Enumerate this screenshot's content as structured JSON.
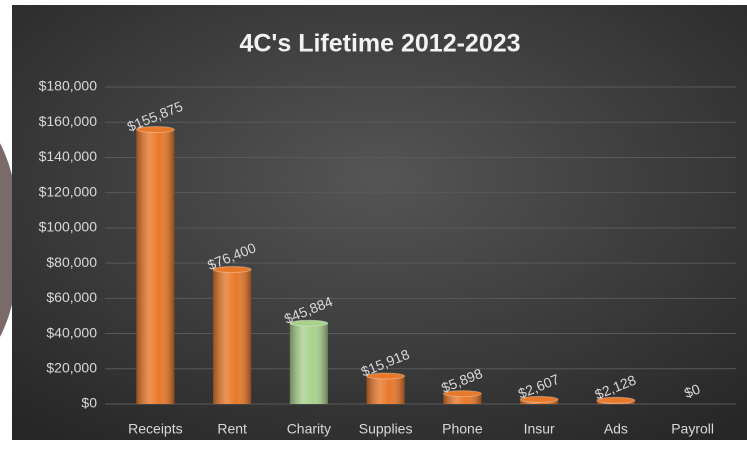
{
  "chart_data": {
    "type": "bar",
    "title": "4C's Lifetime 2012-2023",
    "categories": [
      "Receipts",
      "Rent",
      "Charity",
      "Supplies",
      "Phone",
      "Insur",
      "Ads",
      "Payroll"
    ],
    "values": [
      155875,
      76400,
      45884,
      15918,
      5898,
      2607,
      2128,
      0
    ],
    "value_labels": [
      "$155,875",
      "$76,400",
      "$45,884",
      "$15,918",
      "$5,898",
      "$2,607",
      "$2,128",
      "$0"
    ],
    "colors": [
      "#e8782a",
      "#e8782a",
      "#a9d18e",
      "#e8782a",
      "#e8782a",
      "#e8782a",
      "#e8782a",
      "#e8782a"
    ],
    "ylim": [
      0,
      180000
    ],
    "yticks": [
      {
        "value": 0,
        "label": "$0"
      },
      {
        "value": 20000,
        "label": "$20,000"
      },
      {
        "value": 40000,
        "label": "$40,000"
      },
      {
        "value": 60000,
        "label": "$60,000"
      },
      {
        "value": 80000,
        "label": "$80,000"
      },
      {
        "value": 100000,
        "label": "$100,000"
      },
      {
        "value": 120000,
        "label": "$120,000"
      },
      {
        "value": 140000,
        "label": "$140,000"
      },
      {
        "value": 160000,
        "label": "$160,000"
      },
      {
        "value": 180000,
        "label": "$180,000"
      }
    ],
    "grid": true
  }
}
